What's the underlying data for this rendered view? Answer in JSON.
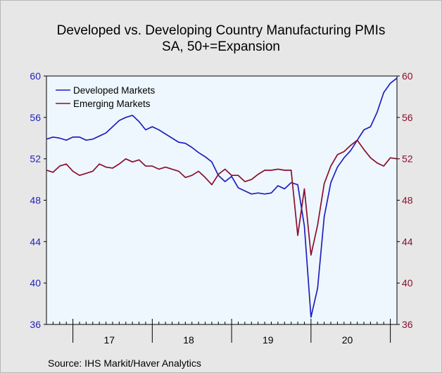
{
  "chart_data": {
    "type": "line",
    "title": "Developed vs. Developing Country Manufacturing PMIs",
    "subtitle": "SA, 50+=Expansion",
    "source": "Source:  IHS Markit/Haver Analytics",
    "ylim": [
      36,
      60
    ],
    "yticks": [
      "60",
      "56",
      "52",
      "48",
      "44",
      "40",
      "36"
    ],
    "ytick_values": [
      60,
      56,
      52,
      48,
      44,
      40,
      36
    ],
    "year_labels": [
      "17",
      "18",
      "19",
      "20"
    ],
    "legend_placement": "top-left",
    "grid": false,
    "x_start": "2016-09",
    "x_end": "2021-04",
    "series": [
      {
        "name": "Developed Markets",
        "color": "#1f1fbf",
        "values": [
          53.9,
          54.1,
          54.0,
          53.8,
          54.1,
          54.1,
          53.8,
          53.9,
          54.2,
          54.5,
          55.1,
          55.7,
          56.0,
          56.2,
          55.6,
          54.8,
          55.1,
          54.8,
          54.4,
          54.0,
          53.6,
          53.5,
          53.1,
          52.6,
          52.2,
          51.7,
          50.4,
          49.8,
          50.3,
          49.2,
          48.9,
          48.6,
          48.7,
          48.6,
          48.7,
          49.4,
          49.1,
          49.7,
          49.5,
          45.5,
          36.7,
          39.5,
          46.4,
          49.7,
          51.2,
          52.1,
          52.8,
          53.8,
          54.8,
          55.1,
          56.5,
          58.4,
          59.3,
          59.8
        ]
      },
      {
        "name": "Emerging Markets",
        "color": "#8b0e2e",
        "values": [
          50.9,
          50.7,
          51.3,
          51.5,
          50.8,
          50.4,
          50.6,
          50.8,
          51.5,
          51.2,
          51.1,
          51.5,
          52.0,
          51.7,
          51.9,
          51.3,
          51.3,
          51.0,
          51.2,
          51.0,
          50.8,
          50.2,
          50.4,
          50.8,
          50.2,
          49.5,
          50.5,
          51.0,
          50.4,
          50.4,
          49.8,
          50.0,
          50.5,
          50.9,
          50.9,
          51.0,
          50.9,
          50.9,
          44.6,
          49.1,
          42.7,
          45.6,
          49.6,
          51.3,
          52.4,
          52.7,
          53.3,
          53.8,
          52.9,
          52.1,
          51.6,
          51.3,
          52.1,
          52.0
        ]
      }
    ]
  }
}
